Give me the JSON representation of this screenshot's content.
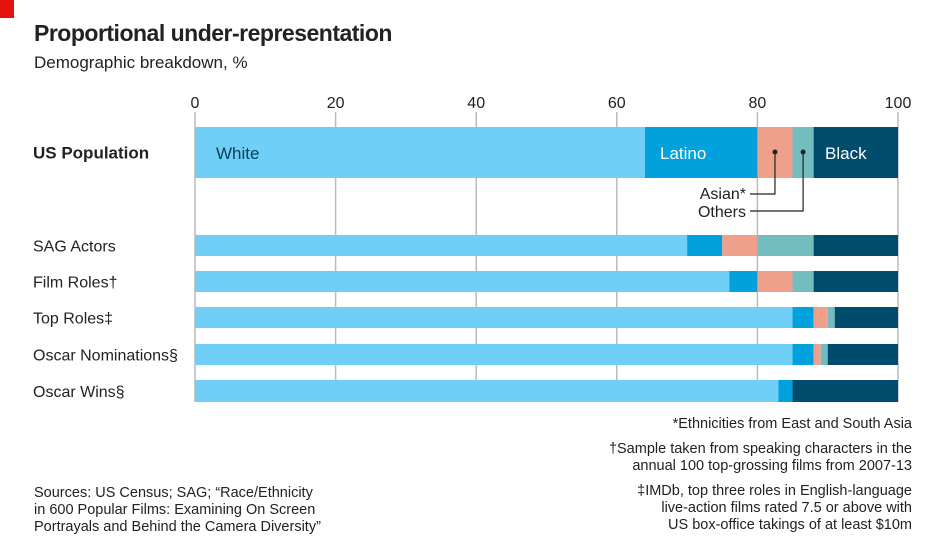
{
  "header": {
    "title": "Proportional under-representation",
    "subtitle": "Demographic breakdown, %"
  },
  "chart_data": {
    "type": "bar",
    "orientation": "horizontal",
    "stacked": true,
    "xlim": [
      0,
      100
    ],
    "xticks": [
      0,
      20,
      40,
      60,
      80,
      100
    ],
    "grid": true,
    "categories": [
      "US Population",
      "SAG Actors",
      "Film Roles†",
      "Top Roles‡",
      "Oscar Nominations§",
      "Oscar Wins§"
    ],
    "series": [
      {
        "name": "White",
        "color": "#6fcff6",
        "values": [
          64,
          70,
          76,
          85,
          85,
          83
        ]
      },
      {
        "name": "Latino",
        "color": "#00a1dc",
        "values": [
          16,
          5,
          4,
          3,
          3,
          2
        ]
      },
      {
        "name": "Asian*",
        "color": "#eea08a",
        "values": [
          5,
          5,
          5,
          2,
          1,
          0
        ]
      },
      {
        "name": "Others",
        "color": "#73bcbf",
        "values": [
          3,
          8,
          3,
          1,
          1,
          0
        ]
      },
      {
        "name": "Black",
        "color": "#004c6c",
        "values": [
          12,
          12,
          12,
          9,
          10,
          15
        ]
      }
    ]
  },
  "footnotes": {
    "asian": "*Ethnicities from East and South Asia",
    "dagger": [
      "†Sample taken from speaking characters in the",
      "annual 100 top-grossing films from 2007-13"
    ],
    "ddagger": [
      "‡IMDb, top three roles in English-language",
      "live-action films rated 7.5 or above with",
      "US box-office takings of at least $10m"
    ]
  },
  "sources": [
    "Sources: US Census; SAG; “Race/Ethnicity",
    "in 600 Popular Films: Examining On Screen",
    "Portrayals and Behind the Camera Diversity”"
  ]
}
